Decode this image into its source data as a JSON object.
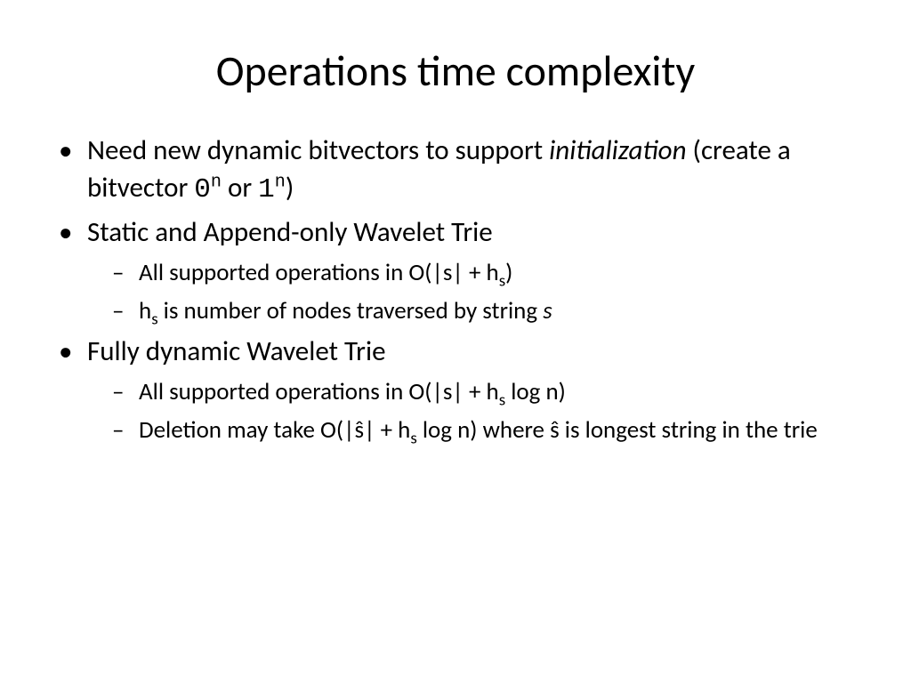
{
  "slide": {
    "title": "Operations time complexity",
    "bullets": {
      "b1_pre": "Need new dynamic bitvectors to support ",
      "b1_ital": "initialization",
      "b1_mid": " (create a bitvector ",
      "b1_zero": "0",
      "b1_sup1": "n",
      "b1_or": " or ",
      "b1_one": "1",
      "b1_sup2": "n",
      "b1_close": ")",
      "b2": "Static and Append-only Wavelet Trie",
      "b2_s1_pre": "All supported operations in O(|s| + h",
      "b2_s1_sub": "s",
      "b2_s1_post": ")",
      "b2_s2_h": "h",
      "b2_s2_sub": "s",
      "b2_s2_mid": " is number of nodes traversed by string ",
      "b2_s2_s": "s",
      "b3": "Fully dynamic Wavelet Trie",
      "b3_s1_pre": "All supported operations in O(|s| + h",
      "b3_s1_sub": "s",
      "b3_s1_post": " log n)",
      "b3_s2_pre": "Deletion may take O(|ŝ| + h",
      "b3_s2_sub": "s",
      "b3_s2_post": " log n) where ŝ is longest string in the trie"
    },
    "colors": {
      "background": "#ffffff",
      "text": "#000000"
    },
    "typography": {
      "title_fontsize": 48,
      "bullet_l1_fontsize": 31,
      "bullet_l2_fontsize": 27,
      "font_family": "Calibri"
    }
  }
}
